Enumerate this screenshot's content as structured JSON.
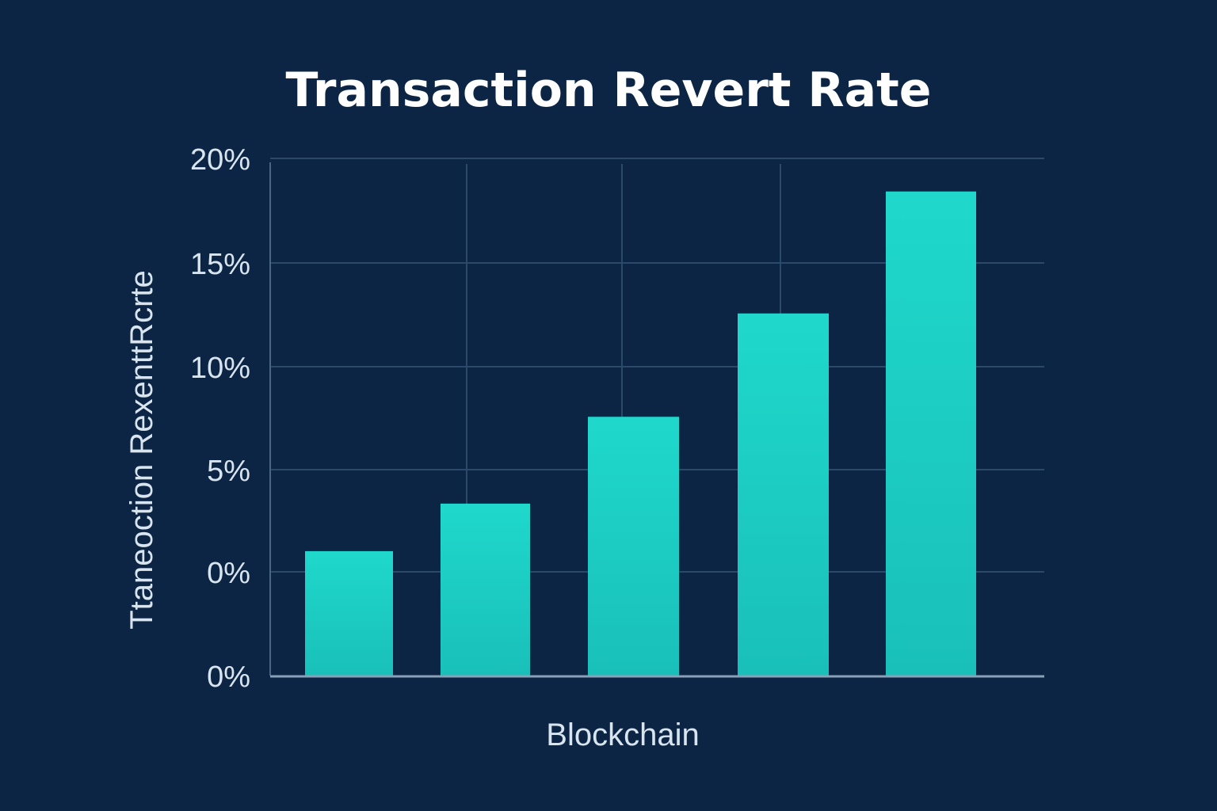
{
  "chart_data": {
    "type": "bar",
    "title": "Transaction Revert Rate",
    "xlabel": "Blockchain",
    "ylabel": "Ttaneoction RexenttRcrte",
    "y_tick_labels": [
      "20%",
      "15%",
      "10%",
      "5%",
      "0%",
      "0%"
    ],
    "ylim": [
      0,
      20
    ],
    "categories": [
      "",
      "",
      "",
      "",
      ""
    ],
    "values": [
      1.0,
      3.3,
      7.5,
      12.5,
      18.4
    ],
    "grid": true,
    "colors": {
      "background": "#0c2544",
      "bar_top": "#1fd8cb",
      "bar_bottom": "#19c0ba",
      "grid": "#2b4a6a",
      "axis": "#8aa0b8",
      "text": "#d8e4ee",
      "title": "#ffffff"
    }
  }
}
